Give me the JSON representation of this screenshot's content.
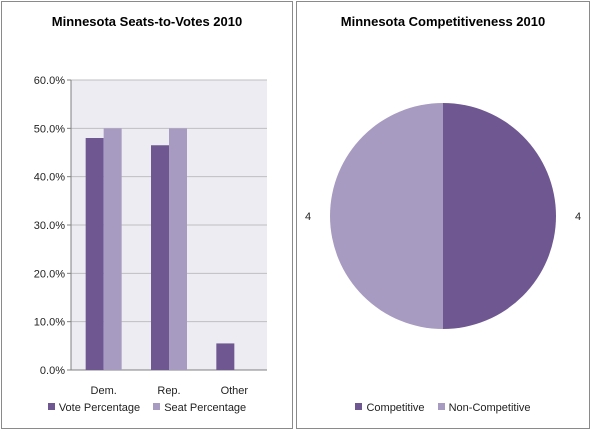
{
  "colors": {
    "vote": "#6F5891",
    "seat": "#A89BC2",
    "competitive": "#6F5891",
    "non_competitive": "#A89BC2",
    "plot_bg": "#EDECF2",
    "grid": "#BFBFBF"
  },
  "chart_data": [
    {
      "type": "bar",
      "title": "Minnesota Seats-to-Votes 2010",
      "categories": [
        "Dem.",
        "Rep.",
        "Other"
      ],
      "series": [
        {
          "name": "Vote Percentage",
          "values": [
            48.0,
            46.5,
            5.5
          ]
        },
        {
          "name": "Seat Percentage",
          "values": [
            50.0,
            50.0,
            0.0
          ]
        }
      ],
      "ylim": [
        0,
        60
      ],
      "yticks": [
        "0.0%",
        "10.0%",
        "20.0%",
        "30.0%",
        "40.0%",
        "50.0%",
        "60.0%"
      ],
      "grid": true,
      "legend": "bottom"
    },
    {
      "type": "pie",
      "title": "Minnesota Competitiveness 2010",
      "slices": [
        {
          "name": "Competitive",
          "value": 4,
          "label": "4"
        },
        {
          "name": "Non-Competitive",
          "value": 4,
          "label": "4"
        }
      ],
      "legend": "bottom"
    }
  ]
}
